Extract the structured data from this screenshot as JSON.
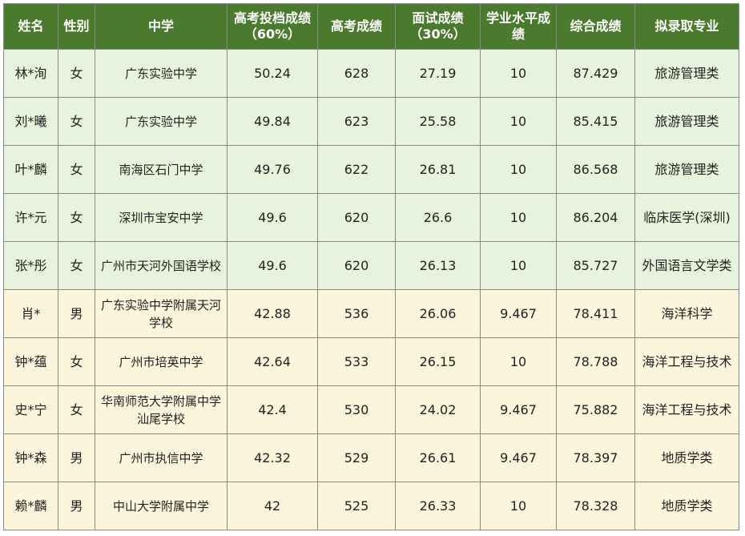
{
  "headers": [
    "姓名",
    "性别",
    "中学",
    "高考投档成绩（60%）",
    "高考成绩",
    "面试成绩（30%）",
    "学业水平成绩",
    "综合成绩",
    "拟录取专业"
  ],
  "rows": [
    {
      "name": "林*洵",
      "gender": "女",
      "school": "广东实验中学",
      "weighted": "50.24",
      "gaokao": "628",
      "interview": "27.19",
      "level": "10",
      "total": "87.429",
      "major": "旅游管理类",
      "group": "green"
    },
    {
      "name": "刘*曦",
      "gender": "女",
      "school": "广东实验中学",
      "weighted": "49.84",
      "gaokao": "623",
      "interview": "25.58",
      "level": "10",
      "total": "85.415",
      "major": "旅游管理类",
      "group": "green"
    },
    {
      "name": "叶*麟",
      "gender": "女",
      "school": "南海区石门中学",
      "weighted": "49.76",
      "gaokao": "622",
      "interview": "26.81",
      "level": "10",
      "total": "86.568",
      "major": "旅游管理类",
      "group": "green"
    },
    {
      "name": "许*元",
      "gender": "女",
      "school": "深圳市宝安中学",
      "weighted": "49.6",
      "gaokao": "620",
      "interview": "26.6",
      "level": "10",
      "total": "86.204",
      "major": "临床医学(深圳)",
      "group": "green"
    },
    {
      "name": "张*彤",
      "gender": "女",
      "school": "广州市天河外国语学校",
      "weighted": "49.6",
      "gaokao": "620",
      "interview": "26.13",
      "level": "10",
      "total": "85.727",
      "major": "外国语言文学类",
      "group": "green"
    },
    {
      "name": "肖*",
      "gender": "男",
      "school": "广东实验中学附属天河学校",
      "weighted": "42.88",
      "gaokao": "536",
      "interview": "26.06",
      "level": "9.467",
      "total": "78.411",
      "major": "海洋科学",
      "group": "yellow"
    },
    {
      "name": "钟*蕴",
      "gender": "女",
      "school": "广州市培英中学",
      "weighted": "42.64",
      "gaokao": "533",
      "interview": "26.15",
      "level": "10",
      "total": "78.788",
      "major": "海洋工程与技术",
      "group": "yellow"
    },
    {
      "name": "史*宁",
      "gender": "女",
      "school": "华南师范大学附属中学汕尾学校",
      "weighted": "42.4",
      "gaokao": "530",
      "interview": "24.02",
      "level": "9.467",
      "total": "75.882",
      "major": "海洋工程与技术",
      "group": "yellow"
    },
    {
      "name": "钟*森",
      "gender": "男",
      "school": "广州市执信中学",
      "weighted": "42.32",
      "gaokao": "529",
      "interview": "26.61",
      "level": "9.467",
      "total": "78.397",
      "major": "地质学类",
      "group": "yellow"
    },
    {
      "name": "赖*麟",
      "gender": "男",
      "school": "中山大学附属中学",
      "weighted": "42",
      "gaokao": "525",
      "interview": "26.33",
      "level": "10",
      "total": "78.328",
      "major": "地质学类",
      "group": "yellow"
    }
  ],
  "colors": {
    "header_bg": "#4a7a2d",
    "header_text": "#ffffff",
    "group1_bg": "#e8f3dd",
    "group2_bg": "#fdf4dc",
    "border": "#8a8a8a"
  }
}
